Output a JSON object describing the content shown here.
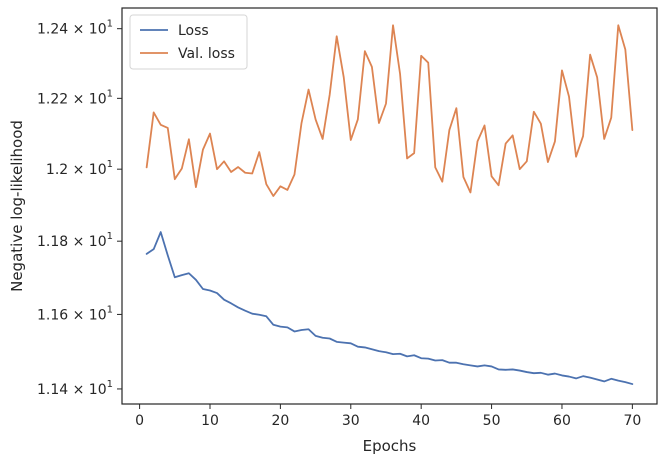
{
  "chart_data": {
    "type": "line",
    "title": "",
    "xlabel": "Epochs",
    "ylabel": "Negative log-likelihood",
    "yscale": "log",
    "xlim": [
      -2.5,
      73.5
    ],
    "ylim": [
      11.36,
      12.46
    ],
    "grid": false,
    "legend_position": "top-left",
    "x_ticks": [
      0,
      10,
      20,
      30,
      40,
      50,
      60,
      70
    ],
    "x_tick_labels": [
      "0",
      "10",
      "20",
      "30",
      "40",
      "50",
      "60",
      "70"
    ],
    "y_ticks": [
      11.4,
      11.6,
      11.8,
      12.0,
      12.2,
      12.4
    ],
    "y_tick_mantissas": [
      "1.14",
      "1.16",
      "1.18",
      "1.2",
      "1.22",
      "1.24"
    ],
    "y_tick_base": "10",
    "y_tick_exponent": "1",
    "y_tick_times": "×",
    "series": [
      {
        "name": "Loss",
        "color": "#4c72b0",
        "x": [
          1,
          2,
          3,
          4,
          5,
          6,
          7,
          8,
          9,
          10,
          11,
          12,
          13,
          14,
          15,
          16,
          17,
          18,
          19,
          20,
          21,
          22,
          23,
          24,
          25,
          26,
          27,
          28,
          29,
          30,
          31,
          32,
          33,
          34,
          35,
          36,
          37,
          38,
          39,
          40,
          41,
          42,
          43,
          44,
          45,
          46,
          47,
          48,
          49,
          50,
          51,
          52,
          53,
          54,
          55,
          56,
          57,
          58,
          59,
          60,
          61,
          62,
          63,
          64,
          65,
          66,
          67,
          68,
          69,
          70
        ],
        "values": [
          11.765,
          11.778,
          11.825,
          11.761,
          11.701,
          11.707,
          11.712,
          11.694,
          11.669,
          11.665,
          11.658,
          11.64,
          11.63,
          11.619,
          11.61,
          11.602,
          11.599,
          11.595,
          11.572,
          11.567,
          11.565,
          11.554,
          11.558,
          11.56,
          11.542,
          11.537,
          11.535,
          11.526,
          11.524,
          11.522,
          11.513,
          11.511,
          11.506,
          11.501,
          11.498,
          11.493,
          11.494,
          11.487,
          11.49,
          11.482,
          11.481,
          11.476,
          11.477,
          11.47,
          11.47,
          11.466,
          11.463,
          11.46,
          11.463,
          11.46,
          11.452,
          11.451,
          11.452,
          11.449,
          11.445,
          11.442,
          11.443,
          11.438,
          11.441,
          11.436,
          11.433,
          11.428,
          11.434,
          11.43,
          11.425,
          11.42,
          11.427,
          11.422,
          11.418,
          11.413
        ]
      },
      {
        "name": "Val. loss",
        "color": "#dd8452",
        "x": [
          1,
          2,
          3,
          4,
          5,
          6,
          7,
          8,
          9,
          10,
          11,
          12,
          13,
          14,
          15,
          16,
          17,
          18,
          19,
          20,
          21,
          22,
          23,
          24,
          25,
          26,
          27,
          28,
          29,
          30,
          31,
          32,
          33,
          34,
          35,
          36,
          37,
          38,
          39,
          40,
          41,
          42,
          43,
          44,
          45,
          46,
          47,
          48,
          49,
          50,
          51,
          52,
          53,
          54,
          55,
          56,
          57,
          58,
          59,
          60,
          61,
          62,
          63,
          64,
          65,
          66,
          67,
          68,
          69,
          70
        ],
        "values": [
          12.005,
          12.16,
          12.125,
          12.116,
          11.972,
          12.002,
          12.084,
          11.95,
          12.055,
          12.1,
          12.0,
          12.022,
          11.992,
          12.006,
          11.99,
          11.988,
          12.048,
          11.958,
          11.925,
          11.952,
          11.942,
          11.985,
          12.13,
          12.225,
          12.14,
          12.085,
          12.21,
          12.378,
          12.26,
          12.082,
          12.14,
          12.335,
          12.29,
          12.13,
          12.185,
          12.41,
          12.27,
          12.03,
          12.045,
          12.322,
          12.302,
          12.005,
          11.965,
          12.11,
          12.172,
          11.978,
          11.935,
          12.078,
          12.123,
          11.98,
          11.955,
          12.072,
          12.095,
          12.0,
          12.022,
          12.162,
          12.128,
          12.02,
          12.078,
          12.28,
          12.205,
          12.035,
          12.093,
          12.325,
          12.26,
          12.085,
          12.145,
          12.41,
          12.34,
          12.11
        ]
      }
    ]
  }
}
